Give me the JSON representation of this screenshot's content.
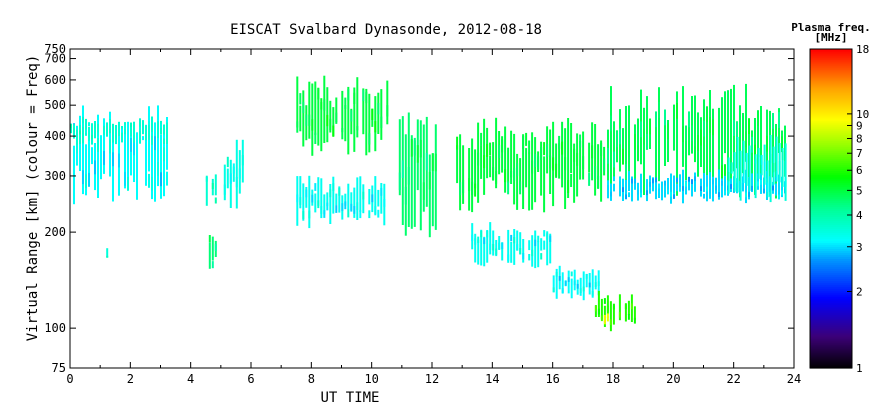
{
  "chart_data": {
    "type": "scatter",
    "title": "EISCAT Svalbard Dynasonde, 2012-08-18",
    "xlabel": "UT TIME",
    "ylabel": "Virtual Range [km] (colour = Freq)",
    "xlim": [
      0,
      24
    ],
    "ylim": [
      75,
      750
    ],
    "yscale": "log",
    "x_ticks": [
      "0",
      "2",
      "4",
      "6",
      "8",
      "10",
      "12",
      "14",
      "16",
      "18",
      "20",
      "22",
      "24"
    ],
    "y_ticks": [
      "75",
      "100",
      "200",
      "300",
      "400",
      "500",
      "600",
      "700",
      "750"
    ],
    "grid": false,
    "colorbar": {
      "title": "Plasma freq.",
      "unit": "[MHz]",
      "scale": "log",
      "range": [
        1,
        18
      ],
      "ticks": [
        "1",
        "2",
        "3",
        "4",
        "5",
        "6",
        "7",
        "8",
        "9",
        "10",
        "18"
      ]
    },
    "series": [
      {
        "x_range": [
          0.0,
          3.2
        ],
        "range_km": [
          230,
          530
        ],
        "freq_mhz": 3.2
      },
      {
        "x_range": [
          0.0,
          3.2
        ],
        "range_km": [
          370,
          470
        ],
        "freq_mhz": 3.6
      },
      {
        "x_range": [
          1.1,
          1.2
        ],
        "range_km": [
          160,
          180
        ],
        "freq_mhz": 3.5
      },
      {
        "x_range": [
          4.5,
          4.8
        ],
        "range_km": [
          230,
          330
        ],
        "freq_mhz": 3.6
      },
      {
        "x_range": [
          4.5,
          4.8
        ],
        "range_km": [
          140,
          215
        ],
        "freq_mhz": 4.5
      },
      {
        "x_range": [
          5.1,
          5.7
        ],
        "range_km": [
          220,
          410
        ],
        "freq_mhz": 3.4
      },
      {
        "x_range": [
          7.5,
          10.5
        ],
        "range_km": [
          330,
          650
        ],
        "freq_mhz": 5.0
      },
      {
        "x_range": [
          7.5,
          10.5
        ],
        "range_km": [
          200,
          320
        ],
        "freq_mhz": 3.3
      },
      {
        "x_range": [
          10.9,
          12.2
        ],
        "range_km": [
          180,
          520
        ],
        "freq_mhz": 4.6
      },
      {
        "x_range": [
          12.8,
          17.8
        ],
        "range_km": [
          220,
          480
        ],
        "freq_mhz": 5.0
      },
      {
        "x_range": [
          13.3,
          16.0
        ],
        "range_km": [
          150,
          220
        ],
        "freq_mhz": 3.3
      },
      {
        "x_range": [
          16.0,
          17.5
        ],
        "range_km": [
          120,
          160
        ],
        "freq_mhz": 3.2
      },
      {
        "x_range": [
          17.4,
          18.7
        ],
        "range_km": [
          95,
          135
        ],
        "freq_mhz": 6.0
      },
      {
        "x_range": [
          17.7,
          17.8
        ],
        "range_km": [
          102,
          112
        ],
        "freq_mhz": 9.0
      },
      {
        "x_range": [
          17.8,
          23.7
        ],
        "range_km": [
          240,
          620
        ],
        "freq_mhz": 4.8
      },
      {
        "x_range": [
          17.8,
          23.7
        ],
        "range_km": [
          240,
          320
        ],
        "freq_mhz": 3.0
      },
      {
        "x_range": [
          21.8,
          23.7
        ],
        "range_km": [
          240,
          420
        ],
        "freq_mhz": 3.5
      }
    ]
  }
}
